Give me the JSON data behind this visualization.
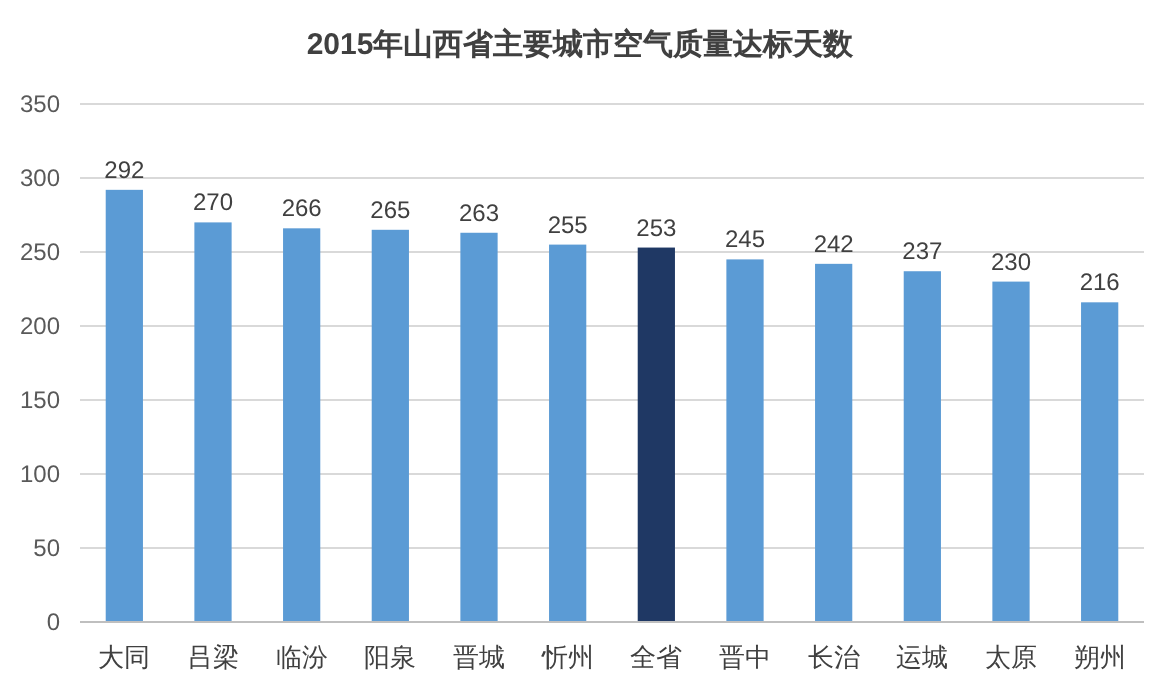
{
  "chart_data": {
    "type": "bar",
    "title": "2015年山西省主要城市空气质量达标天数",
    "categories": [
      "大同",
      "吕梁",
      "临汾",
      "阳泉",
      "晋城",
      "忻州",
      "全省",
      "晋中",
      "长治",
      "运城",
      "太原",
      "朔州"
    ],
    "values": [
      292,
      270,
      266,
      265,
      263,
      255,
      253,
      245,
      242,
      237,
      230,
      216
    ],
    "colors": [
      "#5b9bd5",
      "#5b9bd5",
      "#5b9bd5",
      "#5b9bd5",
      "#5b9bd5",
      "#5b9bd5",
      "#1f3864",
      "#5b9bd5",
      "#5b9bd5",
      "#5b9bd5",
      "#5b9bd5",
      "#5b9bd5"
    ],
    "ylim": [
      0,
      350
    ],
    "yticks": [
      0,
      50,
      100,
      150,
      200,
      250,
      300,
      350
    ],
    "grid": "y",
    "data_labels": true
  }
}
